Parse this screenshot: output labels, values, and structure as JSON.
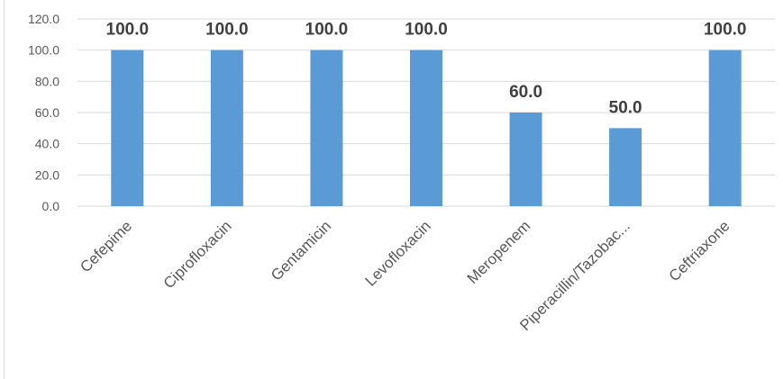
{
  "chart_data": {
    "type": "bar",
    "categories": [
      "Cefepime",
      "Ciprofloxacin",
      "Gentamicin",
      "Levofloxacin",
      "Meropenem",
      "Piperacillin/Tazobac...",
      "Ceftriaxone"
    ],
    "values": [
      100.0,
      100.0,
      100.0,
      100.0,
      60.0,
      50.0,
      100.0
    ],
    "data_labels": [
      "100.0",
      "100.0",
      "100.0",
      "100.0",
      "60.0",
      "50.0",
      "100.0"
    ],
    "yticks": [
      "0.0",
      "20.0",
      "40.0",
      "60.0",
      "80.0",
      "100.0",
      "120.0"
    ],
    "ylim": [
      0,
      120
    ],
    "title": "",
    "xlabel": "",
    "ylabel": "",
    "grid": true,
    "bar_color": "#5b9bd5",
    "grid_color": "#d9d9d9"
  }
}
